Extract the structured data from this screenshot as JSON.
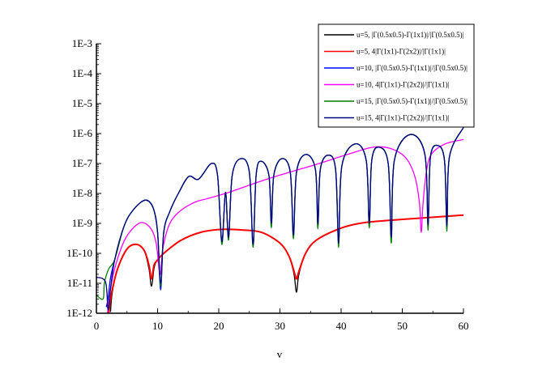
{
  "chart_data": {
    "type": "line",
    "title": "",
    "xlabel": "v",
    "ylabel": "",
    "xlim": [
      0,
      60
    ],
    "ylim": [
      1e-12,
      0.001
    ],
    "yscale": "log",
    "grid": false,
    "legend_position": "top-right",
    "x_ticks": [
      "0",
      "10",
      "20",
      "30",
      "40",
      "50",
      "60"
    ],
    "x_tick_values": [
      0,
      10,
      20,
      30,
      40,
      50,
      60
    ],
    "y_ticks": [
      "1E-12",
      "1E-11",
      "1E-10",
      "1E-9",
      "1E-8",
      "1E-7",
      "1E-6",
      "1E-5",
      "1E-4",
      "1E-3"
    ],
    "y_tick_values": [
      1e-12,
      1e-11,
      1e-10,
      1e-09,
      1e-08,
      1e-07,
      1e-06,
      1e-05,
      0.0001,
      0.001
    ],
    "series": [
      {
        "name": "u=5, |Γ(0.5x0.5)-Γ(1x1)|/|Γ(0.5x0.5)|",
        "color": "#000000",
        "points": [
          [
            2.3,
            1.1e-12
          ],
          [
            2.6,
            5e-12
          ],
          [
            3.5,
            3.2e-11
          ],
          [
            5,
            1.4e-10
          ],
          [
            6.5,
            2e-10
          ],
          [
            7.8,
            1.26e-10
          ],
          [
            8.6,
            3e-11
          ],
          [
            9.0,
            8e-12
          ],
          [
            9.4,
            3e-11
          ],
          [
            9.8,
            5.4e-11
          ],
          [
            11,
            1e-10
          ],
          [
            13.8,
            2.7e-10
          ],
          [
            17,
            5e-10
          ],
          [
            20.4,
            6.3e-10
          ],
          [
            24,
            6e-10
          ],
          [
            27,
            5e-10
          ],
          [
            30,
            2.2e-10
          ],
          [
            31.5,
            7.9e-11
          ],
          [
            32.3,
            2e-11
          ],
          [
            32.7,
            5e-12
          ],
          [
            33.1,
            2e-11
          ],
          [
            34.2,
            1e-10
          ],
          [
            35.9,
            2.7e-10
          ],
          [
            39.6,
            6.5e-10
          ],
          [
            43,
            1e-09
          ],
          [
            47.8,
            1.26e-09
          ],
          [
            60,
            1.9e-09
          ]
        ]
      },
      {
        "name": "u=5, 4|Γ(1x1)-Γ(2x2)|/|Γ(1x1)|",
        "color": "#ff0000",
        "points": [
          [
            2.0,
            1e-12
          ],
          [
            2.5,
            5e-12
          ],
          [
            3.5,
            3.2e-11
          ],
          [
            5,
            1.4e-10
          ],
          [
            6.5,
            2e-10
          ],
          [
            7.8,
            1.26e-10
          ],
          [
            8.6,
            4e-11
          ],
          [
            9.0,
            1.4e-11
          ],
          [
            9.4,
            4e-11
          ],
          [
            9.8,
            5.4e-11
          ],
          [
            11,
            1e-10
          ],
          [
            13.8,
            2.7e-10
          ],
          [
            17,
            5e-10
          ],
          [
            20.4,
            6.3e-10
          ],
          [
            24,
            6e-10
          ],
          [
            27,
            5e-10
          ],
          [
            30,
            2.2e-10
          ],
          [
            31.5,
            7.9e-11
          ],
          [
            32.3,
            2.5e-11
          ],
          [
            32.7,
            1.4e-11
          ],
          [
            33.1,
            2.5e-11
          ],
          [
            34.2,
            1e-10
          ],
          [
            35.9,
            2.7e-10
          ],
          [
            39.6,
            6.5e-10
          ],
          [
            43,
            1e-09
          ],
          [
            47.8,
            1.26e-09
          ],
          [
            60,
            1.9e-09
          ]
        ]
      },
      {
        "name": "u=10, |Γ(0.5x0.5)-Γ(1x1)|/|Γ(0.5x0.5)|",
        "color": "#0000ff",
        "points": [
          [
            1.6,
            1.6e-12
          ],
          [
            1.9,
            3e-12
          ],
          [
            2.3,
            1.5e-11
          ],
          [
            3,
            6.3e-11
          ],
          [
            4.5,
            7.9e-10
          ],
          [
            6,
            2.8e-09
          ],
          [
            8,
            6e-09
          ],
          [
            9.3,
            3.2e-09
          ],
          [
            10.0,
            5e-10
          ],
          [
            10.5,
            6e-12
          ],
          [
            11.0,
            5e-10
          ],
          [
            12,
            2.5e-09
          ],
          [
            13.5,
            1.1e-08
          ],
          [
            15.1,
            3.7e-08
          ],
          [
            16.7,
            3e-08
          ],
          [
            18.8,
            1e-07
          ],
          [
            19.8,
            4e-08
          ],
          [
            20.5,
            2.5e-10
          ],
          [
            21.1,
            1.1e-08
          ],
          [
            21.6,
            3.5e-10
          ],
          [
            22.2,
            4e-08
          ],
          [
            23.6,
            1.45e-07
          ],
          [
            25.0,
            5e-08
          ],
          [
            25.6,
            2e-10
          ],
          [
            26.1,
            4e-08
          ],
          [
            26.9,
            1.2e-07
          ],
          [
            28.2,
            4e-08
          ],
          [
            28.6,
            1e-09
          ],
          [
            29.0,
            4e-08
          ],
          [
            30.3,
            1.45e-07
          ],
          [
            31.7,
            5e-08
          ],
          [
            32.2,
            4e-10
          ],
          [
            32.7,
            5e-08
          ],
          [
            34.2,
            2e-07
          ],
          [
            35.8,
            6.3e-08
          ],
          [
            36.2,
            9.3e-10
          ],
          [
            36.6,
            6.3e-08
          ],
          [
            37.9,
            1.9e-07
          ],
          [
            39.1,
            6.3e-08
          ],
          [
            39.6,
            2.2e-10
          ],
          [
            40.1,
            7.9e-08
          ],
          [
            42.3,
            4.5e-07
          ],
          [
            44.1,
            1.26e-07
          ],
          [
            44.6,
            1e-09
          ],
          [
            45.0,
            1.26e-07
          ],
          [
            46.2,
            3.5e-07
          ],
          [
            47.7,
            1e-07
          ],
          [
            48.2,
            3.5e-10
          ],
          [
            48.7,
            1.26e-07
          ],
          [
            51.3,
            9.3e-07
          ],
          [
            53.7,
            2e-07
          ],
          [
            54.2,
            8.9e-10
          ],
          [
            54.6,
            1.6e-07
          ],
          [
            55.8,
            4e-07
          ],
          [
            56.9,
            1.26e-07
          ],
          [
            57.3,
            8.3e-10
          ],
          [
            57.7,
            1.6e-07
          ],
          [
            60,
            1.6e-06
          ]
        ]
      },
      {
        "name": "u=10, 4|Γ(1x1)-Γ(2x2)|/|Γ(1x1)|",
        "color": "#ff00ff",
        "points": [
          [
            1.8,
            1e-12
          ],
          [
            2.3,
            6.3e-12
          ],
          [
            3,
            3.2e-11
          ],
          [
            4.5,
            2.5e-10
          ],
          [
            6,
            7e-10
          ],
          [
            7.5,
            1.07e-09
          ],
          [
            9,
            6.3e-10
          ],
          [
            9.8,
            2e-10
          ],
          [
            10.4,
            2e-11
          ],
          [
            10.9,
            1.6e-10
          ],
          [
            12,
            1e-09
          ],
          [
            13.8,
            2.7e-09
          ],
          [
            16,
            5e-09
          ],
          [
            18.3,
            6.9e-09
          ],
          [
            21.7,
            1.1e-08
          ],
          [
            28.3,
            3.2e-08
          ],
          [
            35.9,
            9.3e-08
          ],
          [
            41,
            2e-07
          ],
          [
            45.2,
            3.5e-07
          ],
          [
            48,
            3.2e-07
          ],
          [
            50.5,
            1.6e-07
          ],
          [
            52,
            4e-08
          ],
          [
            52.8,
            5e-09
          ],
          [
            53.1,
            5e-10
          ],
          [
            53.4,
            5e-09
          ],
          [
            54.0,
            6.3e-08
          ],
          [
            54.8,
            2.1e-07
          ],
          [
            57,
            4.5e-07
          ],
          [
            60,
            6.3e-07
          ]
        ]
      },
      {
        "name": "u=15, |Γ(0.5x0.5)-Γ(1x1)|/|Γ(0.5x0.5)|",
        "color": "#008000",
        "points": [
          [
            0,
            4e-12
          ],
          [
            1.1,
            3e-12
          ],
          [
            1.3,
            1e-11
          ],
          [
            2,
            3e-11
          ],
          [
            3,
            6.3e-11
          ],
          [
            4.5,
            7.9e-10
          ],
          [
            6,
            2.8e-09
          ],
          [
            8,
            6e-09
          ],
          [
            9.3,
            3.2e-09
          ],
          [
            10.0,
            5e-10
          ],
          [
            10.5,
            8e-12
          ],
          [
            11.0,
            5e-10
          ],
          [
            12,
            2.5e-09
          ],
          [
            13.5,
            1.1e-08
          ],
          [
            15.1,
            3.7e-08
          ],
          [
            16.7,
            3e-08
          ],
          [
            18.8,
            1e-07
          ],
          [
            19.8,
            4e-08
          ],
          [
            20.5,
            2e-10
          ],
          [
            21.1,
            1.1e-08
          ],
          [
            21.6,
            2.8e-10
          ],
          [
            22.2,
            4e-08
          ],
          [
            23.6,
            1.45e-07
          ],
          [
            25.0,
            5e-08
          ],
          [
            25.6,
            1.6e-10
          ],
          [
            26.1,
            4e-08
          ],
          [
            26.9,
            1.2e-07
          ],
          [
            28.2,
            4e-08
          ],
          [
            28.6,
            7e-10
          ],
          [
            29.0,
            4e-08
          ],
          [
            30.3,
            1.45e-07
          ],
          [
            31.7,
            5e-08
          ],
          [
            32.2,
            3e-10
          ],
          [
            32.7,
            5e-08
          ],
          [
            34.2,
            2e-07
          ],
          [
            35.8,
            6.3e-08
          ],
          [
            36.2,
            6.5e-10
          ],
          [
            36.6,
            6.3e-08
          ],
          [
            37.9,
            1.9e-07
          ],
          [
            39.1,
            6.3e-08
          ],
          [
            39.6,
            1.6e-10
          ],
          [
            40.1,
            7.9e-08
          ],
          [
            42.3,
            4.5e-07
          ],
          [
            44.1,
            1.26e-07
          ],
          [
            44.6,
            7e-10
          ],
          [
            45.0,
            1.26e-07
          ],
          [
            46.2,
            3.5e-07
          ],
          [
            47.7,
            1e-07
          ],
          [
            48.2,
            2.2e-10
          ],
          [
            48.7,
            1.26e-07
          ],
          [
            51.3,
            9.3e-07
          ],
          [
            53.7,
            2e-07
          ],
          [
            54.2,
            6e-10
          ],
          [
            54.6,
            1.6e-07
          ],
          [
            55.8,
            4e-07
          ],
          [
            56.9,
            1.26e-07
          ],
          [
            57.3,
            5.5e-10
          ],
          [
            57.7,
            1.6e-07
          ],
          [
            60,
            1.6e-06
          ]
        ]
      },
      {
        "name": "u=15, 4|Γ(1x1)-Γ(2x2)|/|Γ(1x1)|",
        "color": "#000080",
        "points": [
          [
            0,
            1.6e-11
          ],
          [
            1.5,
            1.1e-11
          ],
          [
            1.9,
            1.3e-12
          ],
          [
            2.3,
            6.3e-12
          ],
          [
            3,
            6.3e-11
          ],
          [
            4.5,
            7.9e-10
          ],
          [
            6,
            2.8e-09
          ],
          [
            8,
            6e-09
          ],
          [
            9.3,
            3.2e-09
          ],
          [
            10.0,
            5e-10
          ],
          [
            10.5,
            1e-11
          ],
          [
            11.0,
            5e-10
          ],
          [
            12,
            2.5e-09
          ],
          [
            13.5,
            1.1e-08
          ],
          [
            15.1,
            3.7e-08
          ],
          [
            16.7,
            3e-08
          ],
          [
            18.8,
            1e-07
          ],
          [
            19.8,
            4e-08
          ],
          [
            20.5,
            2.5e-10
          ],
          [
            21.1,
            1.1e-08
          ],
          [
            21.6,
            3.5e-10
          ],
          [
            22.2,
            4e-08
          ],
          [
            23.6,
            1.45e-07
          ],
          [
            25.0,
            5e-08
          ],
          [
            25.6,
            2e-10
          ],
          [
            26.1,
            4e-08
          ],
          [
            26.9,
            1.2e-07
          ],
          [
            28.2,
            4e-08
          ],
          [
            28.6,
            1e-09
          ],
          [
            29.0,
            4e-08
          ],
          [
            30.3,
            1.45e-07
          ],
          [
            31.7,
            5e-08
          ],
          [
            32.2,
            4e-10
          ],
          [
            32.7,
            5e-08
          ],
          [
            34.2,
            2e-07
          ],
          [
            35.8,
            6.3e-08
          ],
          [
            36.2,
            9.3e-10
          ],
          [
            36.6,
            6.3e-08
          ],
          [
            37.9,
            1.9e-07
          ],
          [
            39.1,
            6.3e-08
          ],
          [
            39.6,
            2.2e-10
          ],
          [
            40.1,
            7.9e-08
          ],
          [
            42.3,
            4.5e-07
          ],
          [
            44.1,
            1.26e-07
          ],
          [
            44.6,
            1e-09
          ],
          [
            45.0,
            1.26e-07
          ],
          [
            46.2,
            3.5e-07
          ],
          [
            47.7,
            1e-07
          ],
          [
            48.2,
            3.5e-10
          ],
          [
            48.7,
            1.26e-07
          ],
          [
            51.3,
            9.3e-07
          ],
          [
            53.7,
            2e-07
          ],
          [
            54.2,
            8.9e-10
          ],
          [
            54.6,
            1.6e-07
          ],
          [
            55.8,
            4e-07
          ],
          [
            56.9,
            1.26e-07
          ],
          [
            57.3,
            8.3e-10
          ],
          [
            57.7,
            1.6e-07
          ],
          [
            60,
            1.6e-06
          ]
        ]
      }
    ]
  }
}
